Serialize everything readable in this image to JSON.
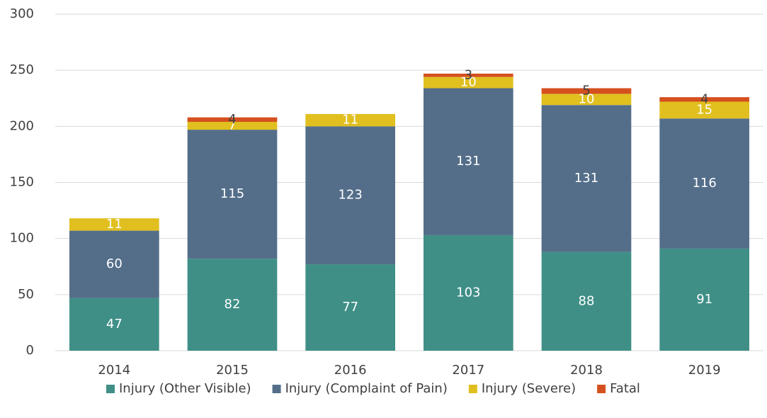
{
  "chart_data": {
    "type": "stacked_bar",
    "categories": [
      "2014",
      "2015",
      "2016",
      "2017",
      "2018",
      "2019"
    ],
    "series": [
      {
        "name": "Injury (Other Visible)",
        "color": "#3f8f87",
        "values": [
          47,
          82,
          77,
          103,
          88,
          91
        ]
      },
      {
        "name": "Injury (Complaint of Pain)",
        "color": "#546e8a",
        "values": [
          60,
          115,
          123,
          131,
          131,
          116
        ]
      },
      {
        "name": "Injury (Severe)",
        "color": "#e0bf1f",
        "values": [
          11,
          7,
          11,
          10,
          10,
          15
        ]
      },
      {
        "name": "Fatal",
        "color": "#d5501f",
        "values": [
          null,
          4,
          null,
          3,
          5,
          4
        ]
      }
    ],
    "ylim": [
      0,
      300
    ],
    "yticks": [
      0,
      50,
      100,
      150,
      200,
      250,
      300
    ],
    "grid": true,
    "legend": "bottom"
  }
}
